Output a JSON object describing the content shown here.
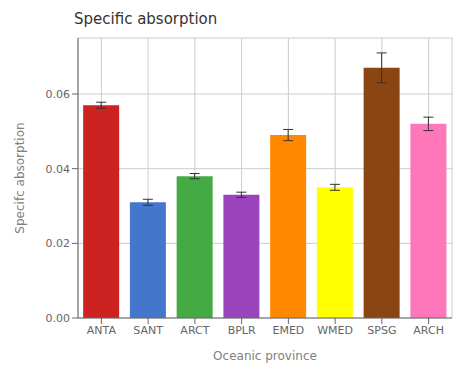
{
  "chart_data": {
    "type": "bar",
    "title": "Specific absorption",
    "xlabel": "Oceanic province",
    "ylabel": "Specifc absorption",
    "categories": [
      "ANTA",
      "SANT",
      "ARCT",
      "BPLR",
      "EMED",
      "WMED",
      "SPSG",
      "ARCH"
    ],
    "values": [
      0.057,
      0.031,
      0.038,
      0.033,
      0.049,
      0.035,
      0.067,
      0.052
    ],
    "errors": [
      0.0008,
      0.0008,
      0.0007,
      0.0007,
      0.0015,
      0.0008,
      0.004,
      0.0018
    ],
    "colors": [
      "#CC2222",
      "#4477CC",
      "#44AA44",
      "#9944BB",
      "#FF8800",
      "#FFFF00",
      "#8B4513",
      "#FF77BB"
    ],
    "ylim": [
      0,
      0.075
    ],
    "yticks": [
      {
        "value": 0,
        "label": "0.00"
      },
      0.02,
      0.04,
      0.06
    ],
    "grid": true
  }
}
